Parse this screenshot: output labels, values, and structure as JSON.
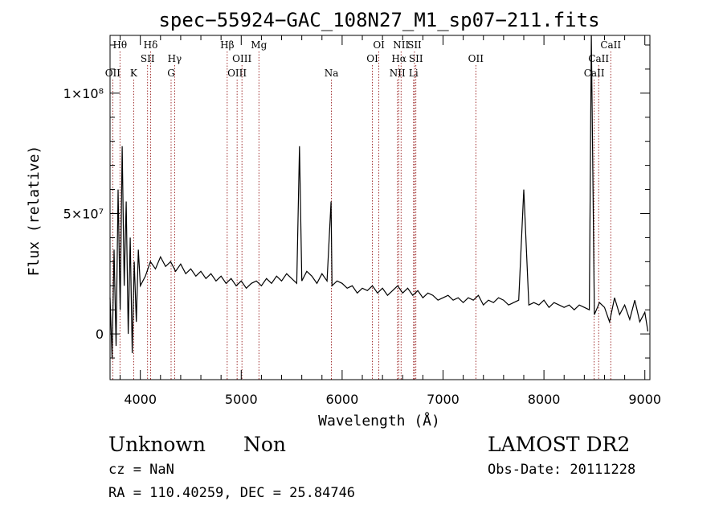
{
  "chart_data": {
    "type": "line",
    "title": "spec−55924−GAC_108N27_M1_sp07−211.fits",
    "xlabel": "Wavelength (Å)",
    "ylabel": "Flux (relative)",
    "xlim": [
      3700,
      9050
    ],
    "ylim": [
      -19000000,
      124000000
    ],
    "x_ticks": [
      4000,
      5000,
      6000,
      7000,
      8000,
      9000
    ],
    "x_tick_labels": [
      "4000",
      "5000",
      "6000",
      "7000",
      "8000",
      "9000"
    ],
    "y_ticks": [
      0,
      50000000,
      100000000
    ],
    "y_tick_labels": [
      "0",
      "5×10⁷",
      "1×10⁸"
    ],
    "grid": false,
    "line_color": "#000000",
    "marker_color": "#8b0000",
    "series": [
      {
        "x": [
          3700,
          3720,
          3740,
          3760,
          3780,
          3800,
          3820,
          3840,
          3860,
          3880,
          3900,
          3920,
          3940,
          3960,
          3980,
          4000,
          4050,
          4100,
          4150,
          4200,
          4250,
          4300,
          4350,
          4400,
          4450,
          4500,
          4550,
          4600,
          4650,
          4700,
          4750,
          4800,
          4850,
          4900,
          4950,
          5000,
          5050,
          5100,
          5150,
          5200,
          5250,
          5300,
          5350,
          5400,
          5450,
          5500,
          5550,
          5577,
          5600,
          5650,
          5700,
          5750,
          5800,
          5850,
          5890,
          5900,
          5950,
          6000,
          6050,
          6100,
          6150,
          6200,
          6250,
          6300,
          6350,
          6400,
          6450,
          6500,
          6550,
          6600,
          6650,
          6700,
          6750,
          6800,
          6850,
          6900,
          6950,
          7000,
          7050,
          7100,
          7150,
          7200,
          7250,
          7300,
          7350,
          7400,
          7450,
          7500,
          7550,
          7600,
          7650,
          7700,
          7750,
          7800,
          7850,
          7900,
          7950,
          8000,
          8050,
          8100,
          8150,
          8200,
          8250,
          8300,
          8350,
          8400,
          8450,
          8470,
          8500,
          8550,
          8600,
          8650,
          8700,
          8750,
          8800,
          8850,
          8900,
          8950,
          9000,
          9030
        ],
        "y": [
          15000000,
          -10000000,
          35000000,
          -5000000,
          60000000,
          10000000,
          78000000,
          20000000,
          55000000,
          0,
          40000000,
          -8000000,
          30000000,
          5000000,
          35000000,
          20000000,
          24000000,
          30000000,
          27000000,
          32000000,
          28000000,
          30000000,
          26000000,
          29000000,
          25000000,
          27000000,
          24000000,
          26000000,
          23000000,
          25000000,
          22000000,
          24000000,
          21000000,
          23000000,
          20000000,
          22000000,
          19000000,
          21000000,
          22000000,
          20000000,
          23000000,
          21000000,
          24000000,
          22000000,
          25000000,
          23000000,
          21000000,
          78000000,
          22000000,
          26000000,
          24000000,
          21000000,
          25000000,
          22000000,
          55000000,
          20000000,
          22000000,
          21000000,
          19000000,
          20000000,
          17000000,
          19000000,
          18000000,
          20000000,
          17000000,
          19000000,
          16000000,
          18000000,
          20000000,
          17000000,
          19000000,
          16000000,
          18000000,
          15000000,
          17000000,
          16000000,
          14000000,
          15000000,
          16000000,
          14000000,
          15000000,
          13000000,
          15000000,
          14000000,
          16000000,
          12000000,
          14000000,
          13000000,
          15000000,
          14000000,
          12000000,
          13000000,
          14000000,
          60000000,
          12000000,
          13000000,
          12000000,
          14000000,
          11000000,
          13000000,
          12000000,
          11000000,
          12000000,
          10000000,
          12000000,
          11000000,
          10000000,
          124000000,
          8000000,
          13000000,
          11000000,
          5000000,
          15000000,
          8000000,
          12000000,
          6000000,
          14000000,
          5000000,
          9000000,
          1000000
        ]
      }
    ],
    "line_markers": [
      {
        "label": "Hθ",
        "x": 3798,
        "row": 0
      },
      {
        "label": "OII",
        "x": 3727,
        "row": 2
      },
      {
        "label": "K",
        "x": 3934,
        "row": 2
      },
      {
        "label": "Hδ",
        "x": 4102,
        "row": 0
      },
      {
        "label": "SII",
        "x": 4072,
        "row": 1
      },
      {
        "label": "Hγ",
        "x": 4340,
        "row": 1
      },
      {
        "label": "G",
        "x": 4305,
        "row": 2
      },
      {
        "label": "Hβ",
        "x": 4861,
        "row": 0
      },
      {
        "label": "OIII",
        "x": 5007,
        "row": 1
      },
      {
        "label": "OIII",
        "x": 4959,
        "row": 2
      },
      {
        "label": "Mg",
        "x": 5175,
        "row": 0
      },
      {
        "label": "Na",
        "x": 5894,
        "row": 2
      },
      {
        "label": "OI",
        "x": 6364,
        "row": 0
      },
      {
        "label": "OI",
        "x": 6300,
        "row": 1
      },
      {
        "label": "NII",
        "x": 6584,
        "row": 0
      },
      {
        "label": "SII",
        "x": 6717,
        "row": 0
      },
      {
        "label": "Hα",
        "x": 6563,
        "row": 1
      },
      {
        "label": "SII",
        "x": 6731,
        "row": 1
      },
      {
        "label": "NII",
        "x": 6548,
        "row": 2
      },
      {
        "label": "Li",
        "x": 6708,
        "row": 2
      },
      {
        "label": "OII",
        "x": 7325,
        "row": 1
      },
      {
        "label": "CaII",
        "x": 8662,
        "row": 0
      },
      {
        "label": "CaII",
        "x": 8542,
        "row": 1
      },
      {
        "label": "CaII",
        "x": 8498,
        "row": 2
      }
    ]
  },
  "info": {
    "class": "Unknown",
    "subclass": "Non",
    "survey": "LAMOST DR2",
    "cz": "cz = NaN",
    "obs_date": "Obs-Date: 20111228",
    "coords": "RA = 110.40259, DEC =  25.84746"
  }
}
